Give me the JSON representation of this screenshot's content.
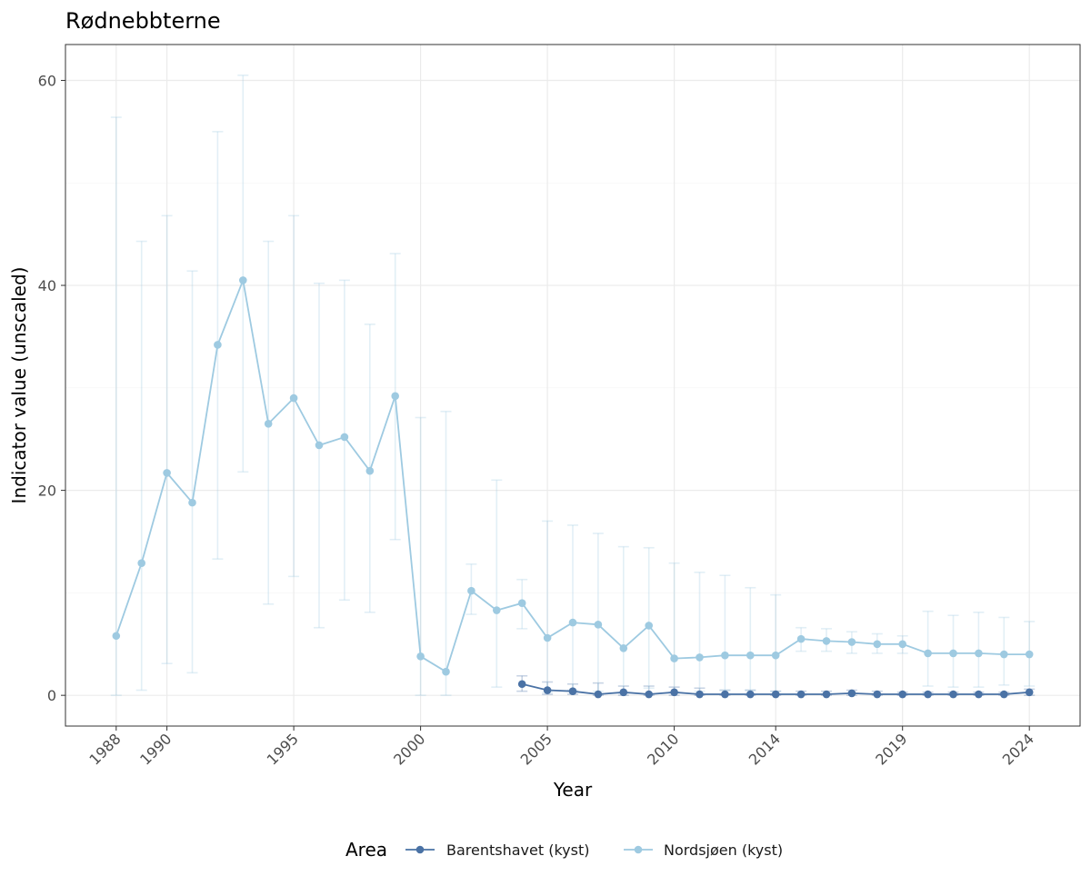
{
  "chart_data": {
    "type": "line",
    "title": "Rødnebbterne",
    "xlabel": "Year",
    "ylabel": "Indicator value (unscaled)",
    "x_ticks": [
      1988,
      1990,
      1995,
      2000,
      2005,
      2010,
      2014,
      2019,
      2024
    ],
    "y_ticks": [
      0,
      20,
      40,
      60
    ],
    "xlim": [
      1986.0,
      2026.0
    ],
    "ylim": [
      -3.0,
      63.5
    ],
    "grid": true,
    "legend": {
      "title": "Area",
      "position": "bottom"
    },
    "series": [
      {
        "name": "Barentshavet (kyst)",
        "color": "#4a72a5",
        "x": [
          2004,
          2005,
          2006,
          2007,
          2008,
          2009,
          2010,
          2011,
          2012,
          2013,
          2014,
          2015,
          2016,
          2017,
          2018,
          2019,
          2020,
          2021,
          2022,
          2023,
          2024
        ],
        "y": [
          1.1,
          0.5,
          0.4,
          0.1,
          0.3,
          0.1,
          0.3,
          0.1,
          0.1,
          0.1,
          0.1,
          0.1,
          0.1,
          0.2,
          0.1,
          0.1,
          0.1,
          0.1,
          0.1,
          0.1,
          0.3
        ],
        "lower": [
          0.4,
          0.1,
          0.1,
          0.0,
          0.0,
          0.0,
          0.0,
          0.0,
          0.0,
          0.0,
          0.0,
          0.0,
          0.0,
          0.0,
          0.0,
          0.0,
          0.0,
          0.0,
          0.0,
          0.0,
          0.0
        ],
        "upper": [
          1.9,
          1.3,
          1.1,
          1.2,
          0.9,
          0.9,
          0.8,
          0.7,
          0.5,
          0.5,
          0.4,
          0.4,
          0.4,
          0.5,
          0.4,
          0.3,
          0.3,
          0.3,
          0.3,
          0.3,
          0.6
        ]
      },
      {
        "name": "Nordsjøen (kyst)",
        "color": "#9ecae1",
        "x": [
          1988,
          1989,
          1990,
          1991,
          1992,
          1993,
          1994,
          1995,
          1996,
          1997,
          1998,
          1999,
          2000,
          2001,
          2002,
          2003,
          2004,
          2005,
          2006,
          2007,
          2008,
          2009,
          2010,
          2011,
          2012,
          2013,
          2014,
          2015,
          2016,
          2017,
          2018,
          2019,
          2020,
          2021,
          2022,
          2023,
          2024
        ],
        "y": [
          5.8,
          12.9,
          21.7,
          18.8,
          34.2,
          40.5,
          26.5,
          29.0,
          24.4,
          25.2,
          21.9,
          29.2,
          3.8,
          2.3,
          10.2,
          8.3,
          9.0,
          5.6,
          7.1,
          6.9,
          4.6,
          6.8,
          3.6,
          3.7,
          3.9,
          3.9,
          3.9,
          5.5,
          5.3,
          5.2,
          5.0,
          5.0,
          4.1,
          4.1,
          4.1,
          4.0,
          4.0
        ],
        "lower": [
          0.0,
          0.5,
          3.1,
          2.2,
          13.3,
          21.8,
          8.9,
          11.6,
          6.6,
          9.3,
          8.1,
          15.2,
          0.0,
          0.0,
          7.9,
          0.8,
          6.5,
          0.3,
          0.5,
          0.4,
          0.2,
          0.7,
          0.3,
          0.4,
          0.5,
          0.5,
          0.4,
          4.3,
          4.3,
          4.1,
          4.1,
          4.1,
          0.9,
          0.8,
          0.8,
          1.0,
          0.9
        ],
        "upper": [
          56.4,
          44.3,
          46.8,
          41.4,
          55.0,
          60.5,
          44.3,
          46.8,
          40.2,
          40.5,
          36.2,
          43.1,
          27.1,
          27.7,
          12.8,
          21.0,
          11.3,
          17.0,
          16.6,
          15.8,
          14.5,
          14.4,
          12.9,
          12.0,
          11.7,
          10.5,
          9.8,
          6.6,
          6.5,
          6.2,
          6.0,
          5.8,
          8.2,
          7.8,
          8.1,
          7.6,
          7.2
        ]
      }
    ]
  }
}
